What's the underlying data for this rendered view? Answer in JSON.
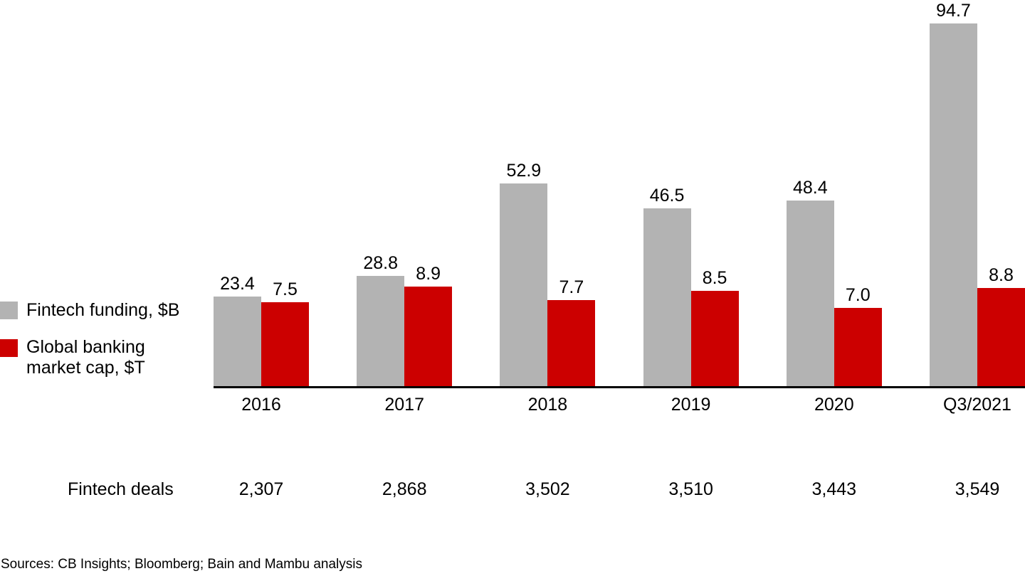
{
  "chart_data": {
    "type": "bar",
    "title": "",
    "categories": [
      "2016",
      "2017",
      "2018",
      "2019",
      "2020",
      "Q3/2021"
    ],
    "series": [
      {
        "name": "Fintech funding, $B",
        "color": "#b3b3b3",
        "values": [
          23.4,
          28.8,
          52.9,
          46.5,
          48.4,
          94.7
        ]
      },
      {
        "name": "Global banking market cap, $T",
        "color": "#cc0000",
        "values": [
          7.5,
          8.9,
          7.7,
          8.5,
          7.0,
          8.8
        ]
      }
    ],
    "value_label_format": "0.0",
    "legend_position": "left",
    "axes": {
      "x_baseline_only": true,
      "gridlines": false,
      "dual_normalized_scales": true
    },
    "annotation_row": {
      "label": "Fintech deals",
      "values": [
        2307,
        2868,
        3502,
        3510,
        3443,
        3549
      ]
    }
  },
  "legend": {
    "items": [
      {
        "color": "#b3b3b3",
        "lines": [
          "Fintech funding, $B"
        ]
      },
      {
        "color": "#cc0000",
        "lines": [
          "Global banking",
          "market cap, $T"
        ]
      }
    ]
  },
  "table": {
    "label": "Fintech deals",
    "values": [
      "2,307",
      "2,868",
      "3,502",
      "3,510",
      "3,443",
      "3,549"
    ]
  },
  "footer": {
    "sources": "Sources: CB Insights; Bloomberg; Bain and Mambu analysis"
  },
  "colors": {
    "gray": "#b3b3b3",
    "red": "#cc0000",
    "axis": "#000000"
  }
}
